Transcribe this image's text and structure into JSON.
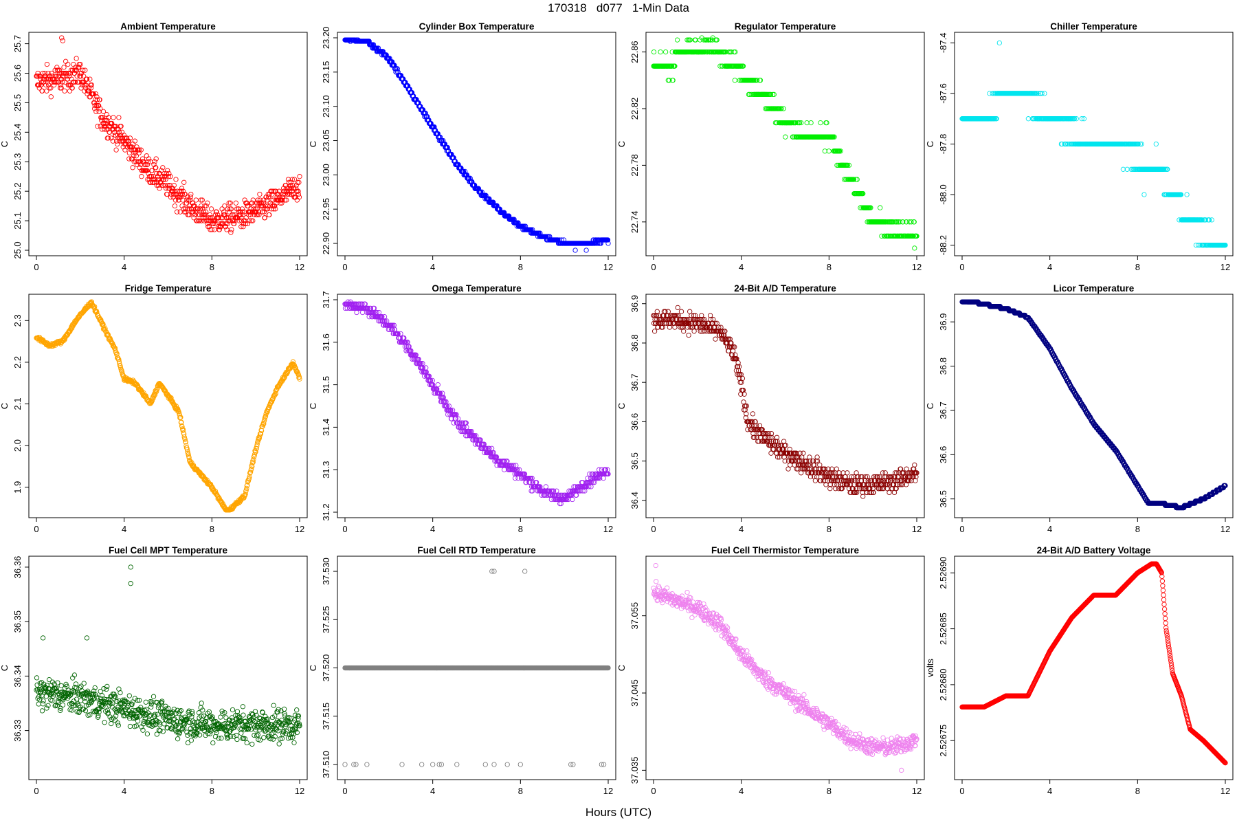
{
  "page": {
    "title": "170318   d077   1-Min Data",
    "x_axis_label": "Hours (UTC)"
  },
  "chart_data": [
    {
      "type": "scatter",
      "title": "Ambient Temperature",
      "ylabel": "C",
      "color": "#ff0000",
      "xlim": [
        0,
        12
      ],
      "xticks": [
        0,
        4,
        8,
        12
      ],
      "ylim": [
        25.0,
        25.72
      ],
      "yticks": [
        "25.0",
        "25.1",
        "25.2",
        "25.3",
        "25.4",
        "25.5",
        "25.6",
        "25.7"
      ],
      "trend": [
        [
          0,
          25.57
        ],
        [
          1,
          25.58
        ],
        [
          2,
          25.6
        ],
        [
          3,
          25.45
        ],
        [
          4,
          25.37
        ],
        [
          5,
          25.28
        ],
        [
          6,
          25.22
        ],
        [
          7,
          25.15
        ],
        [
          8,
          25.1
        ],
        [
          9,
          25.11
        ],
        [
          10,
          25.13
        ],
        [
          11,
          25.17
        ],
        [
          12,
          25.22
        ]
      ],
      "noise": 0.045,
      "discrete_step": 0.01,
      "outliers": [
        [
          1.15,
          25.72
        ],
        [
          1.2,
          25.71
        ]
      ]
    },
    {
      "type": "scatter",
      "title": "Cylinder Box Temperature",
      "ylabel": "C",
      "color": "#0000ff",
      "xlim": [
        0,
        12
      ],
      "xticks": [
        0,
        4,
        8,
        12
      ],
      "ylim": [
        22.89,
        23.2
      ],
      "yticks": [
        "22.90",
        "22.95",
        "23.00",
        "23.05",
        "23.10",
        "23.15",
        "23.20"
      ],
      "trend": [
        [
          0,
          23.2
        ],
        [
          1,
          23.195
        ],
        [
          2,
          23.17
        ],
        [
          3,
          23.12
        ],
        [
          4,
          23.07
        ],
        [
          5,
          23.02
        ],
        [
          6,
          22.98
        ],
        [
          7,
          22.95
        ],
        [
          8,
          22.925
        ],
        [
          9,
          22.91
        ],
        [
          10,
          22.9
        ],
        [
          11,
          22.9
        ],
        [
          12,
          22.905
        ]
      ],
      "noise": 0.002,
      "discrete_step": 0.005,
      "outliers": [
        [
          10.5,
          22.89
        ],
        [
          11.0,
          22.89
        ]
      ]
    },
    {
      "type": "scatter",
      "title": "Regulator Temperature",
      "ylabel": "C",
      "color": "#00ee00",
      "xlim": [
        0,
        12
      ],
      "xticks": [
        0,
        4,
        8,
        12
      ],
      "ylim": [
        22.72,
        22.87
      ],
      "yticks": [
        "22.74",
        "22.78",
        "22.82",
        "22.86"
      ],
      "trend": [
        [
          0,
          22.85
        ],
        [
          0.9,
          22.85
        ],
        [
          1.0,
          22.86
        ],
        [
          2.5,
          22.865
        ],
        [
          3.5,
          22.855
        ],
        [
          4,
          22.845
        ],
        [
          5,
          22.83
        ],
        [
          6,
          22.81
        ],
        [
          7,
          22.8
        ],
        [
          8,
          22.8
        ],
        [
          9,
          22.77
        ],
        [
          10,
          22.74
        ],
        [
          12,
          22.73
        ]
      ],
      "noise": 0.006,
      "discrete_step": 0.01,
      "outliers": [
        [
          2.2,
          22.87
        ],
        [
          2.7,
          22.87
        ]
      ]
    },
    {
      "type": "scatter",
      "title": "Chiller Temperature",
      "ylabel": "C",
      "color": "#00e5ee",
      "xlim": [
        0,
        12
      ],
      "xticks": [
        0,
        4,
        8,
        12
      ],
      "ylim": [
        -88.22,
        -87.38
      ],
      "yticks": [
        "-88.2",
        "-88.0",
        "-87.8",
        "-87.6",
        "-87.4"
      ],
      "trend": [
        [
          0,
          -87.7
        ],
        [
          1,
          -87.7
        ],
        [
          2,
          -87.6
        ],
        [
          3,
          -87.62
        ],
        [
          4,
          -87.7
        ],
        [
          5,
          -87.75
        ],
        [
          6,
          -87.8
        ],
        [
          7,
          -87.8
        ],
        [
          8,
          -87.85
        ],
        [
          9,
          -87.9
        ],
        [
          10,
          -88.05
        ],
        [
          11,
          -88.15
        ],
        [
          12,
          -88.2
        ]
      ],
      "noise": 0.04,
      "discrete_step": 0.1,
      "outliers": [
        [
          1.7,
          -87.4
        ],
        [
          8.3,
          -88.0
        ]
      ]
    },
    {
      "type": "scatter",
      "title": "Fridge Temperature",
      "ylabel": "C",
      "color": "#ffa500",
      "xlim": [
        0,
        12
      ],
      "xticks": [
        0,
        4,
        8,
        12
      ],
      "ylim": [
        1.84,
        2.35
      ],
      "yticks": [
        "1.9",
        "2.0",
        "2.1",
        "2.2",
        "2.3"
      ],
      "trend": [
        [
          0,
          2.26
        ],
        [
          0.6,
          2.24
        ],
        [
          1.2,
          2.25
        ],
        [
          1.8,
          2.3
        ],
        [
          2.5,
          2.345
        ],
        [
          3.2,
          2.27
        ],
        [
          3.6,
          2.23
        ],
        [
          4.0,
          2.16
        ],
        [
          4.5,
          2.15
        ],
        [
          5.2,
          2.1
        ],
        [
          5.6,
          2.15
        ],
        [
          6.0,
          2.12
        ],
        [
          6.5,
          2.08
        ],
        [
          7.0,
          1.96
        ],
        [
          7.5,
          1.93
        ],
        [
          8.0,
          1.9
        ],
        [
          8.7,
          1.84
        ],
        [
          9.5,
          1.88
        ],
        [
          10.0,
          1.99
        ],
        [
          10.5,
          2.08
        ],
        [
          11.0,
          2.14
        ],
        [
          11.7,
          2.2
        ],
        [
          12,
          2.16
        ]
      ],
      "noise": 0.004,
      "discrete_step": 0,
      "outliers": []
    },
    {
      "type": "scatter",
      "title": "Omega Temperature",
      "ylabel": "C",
      "color": "#a020f0",
      "xlim": [
        0,
        12
      ],
      "xticks": [
        0,
        4,
        8,
        12
      ],
      "ylim": [
        31.2,
        31.7
      ],
      "yticks": [
        "31.2",
        "31.3",
        "31.4",
        "31.5",
        "31.6",
        "31.7"
      ],
      "trend": [
        [
          0,
          31.69
        ],
        [
          1,
          31.68
        ],
        [
          2,
          31.64
        ],
        [
          3,
          31.58
        ],
        [
          4,
          31.5
        ],
        [
          5,
          31.42
        ],
        [
          6,
          31.37
        ],
        [
          7,
          31.32
        ],
        [
          8,
          31.29
        ],
        [
          9,
          31.25
        ],
        [
          10,
          31.23
        ],
        [
          11,
          31.27
        ],
        [
          12,
          31.3
        ]
      ],
      "noise": 0.012,
      "discrete_step": 0.01,
      "outliers": []
    },
    {
      "type": "scatter",
      "title": "24-Bit A/D Temperature",
      "ylabel": "C",
      "color": "#8b0000",
      "xlim": [
        0,
        12
      ],
      "xticks": [
        0,
        4,
        8,
        12
      ],
      "ylim": [
        36.37,
        36.91
      ],
      "yticks": [
        "36.4",
        "36.5",
        "36.6",
        "36.7",
        "36.8",
        "36.9"
      ],
      "trend": [
        [
          0,
          36.86
        ],
        [
          1,
          36.86
        ],
        [
          2,
          36.85
        ],
        [
          3,
          36.83
        ],
        [
          3.6,
          36.78
        ],
        [
          4.0,
          36.7
        ],
        [
          4.3,
          36.6
        ],
        [
          5,
          36.56
        ],
        [
          6,
          36.52
        ],
        [
          7,
          36.49
        ],
        [
          8,
          36.46
        ],
        [
          9,
          36.44
        ],
        [
          10,
          36.44
        ],
        [
          11,
          36.45
        ],
        [
          12,
          36.47
        ]
      ],
      "noise": 0.025,
      "discrete_step": 0.01,
      "outliers": []
    },
    {
      "type": "scatter",
      "title": "Licor Temperature",
      "ylabel": "C",
      "color": "#000080",
      "xlim": [
        0,
        12
      ],
      "xticks": [
        0,
        4,
        8,
        12
      ],
      "ylim": [
        36.47,
        36.95
      ],
      "yticks": [
        "36.5",
        "36.6",
        "36.7",
        "36.8",
        "36.9"
      ],
      "trend": [
        [
          0,
          36.95
        ],
        [
          1,
          36.94
        ],
        [
          2,
          36.93
        ],
        [
          3,
          36.91
        ],
        [
          4,
          36.84
        ],
        [
          5,
          36.75
        ],
        [
          6,
          36.67
        ],
        [
          7,
          36.61
        ],
        [
          8,
          36.53
        ],
        [
          8.5,
          36.49
        ],
        [
          9,
          36.49
        ],
        [
          10,
          36.48
        ],
        [
          11,
          36.5
        ],
        [
          12,
          36.53
        ]
      ],
      "noise": 0.0,
      "discrete_step": 0.005,
      "outliers": []
    },
    {
      "type": "scatter",
      "title": "Fuel Cell MPT Temperature",
      "ylabel": "C",
      "color": "#006400",
      "xlim": [
        0,
        12
      ],
      "xticks": [
        0,
        4,
        8,
        12
      ],
      "ylim": [
        36.322,
        36.361
      ],
      "yticks": [
        "36.33",
        "36.34",
        "36.35",
        "36.36"
      ],
      "trend": [
        [
          0,
          36.337
        ],
        [
          2,
          36.336
        ],
        [
          4,
          36.334
        ],
        [
          6,
          36.332
        ],
        [
          8,
          36.331
        ],
        [
          10,
          36.331
        ],
        [
          12,
          36.331
        ]
      ],
      "noise": 0.003,
      "discrete_step": 0,
      "outliers": [
        [
          4.3,
          36.36
        ],
        [
          4.3,
          36.357
        ],
        [
          2.3,
          36.347
        ],
        [
          0.3,
          36.347
        ]
      ]
    },
    {
      "type": "scatter",
      "title": "Fuel Cell RTD Temperature",
      "ylabel": "C",
      "color": "#808080",
      "xlim": [
        0,
        12
      ],
      "xticks": [
        0,
        4,
        8,
        12
      ],
      "ylim": [
        37.509,
        37.531
      ],
      "yticks": [
        "37.510",
        "37.515",
        "37.520",
        "37.525",
        "37.530"
      ],
      "trend": [
        [
          0,
          37.52
        ],
        [
          12,
          37.52
        ]
      ],
      "noise": 0,
      "discrete_step": 0,
      "outliers": [
        [
          6.7,
          37.53
        ],
        [
          6.8,
          37.53
        ],
        [
          8.2,
          37.53
        ],
        [
          0.0,
          37.51
        ],
        [
          0.4,
          37.51
        ],
        [
          0.5,
          37.51
        ],
        [
          1.0,
          37.51
        ],
        [
          2.6,
          37.51
        ],
        [
          3.5,
          37.51
        ],
        [
          4.0,
          37.51
        ],
        [
          4.3,
          37.51
        ],
        [
          4.4,
          37.51
        ],
        [
          5.1,
          37.51
        ],
        [
          6.4,
          37.51
        ],
        [
          6.8,
          37.51
        ],
        [
          7.4,
          37.51
        ],
        [
          8.0,
          37.51
        ],
        [
          10.3,
          37.51
        ],
        [
          10.4,
          37.51
        ],
        [
          11.7,
          37.51
        ],
        [
          11.8,
          37.51
        ]
      ]
    },
    {
      "type": "scatter",
      "title": "Fuel Cell Thermistor Temperature",
      "ylabel": "C",
      "color": "#ee82ee",
      "xlim": [
        0,
        12
      ],
      "xticks": [
        0,
        4,
        8,
        12
      ],
      "ylim": [
        37.0345,
        37.062
      ],
      "yticks": [
        "37.035",
        "37.045",
        "37.055"
      ],
      "trend": [
        [
          0,
          37.058
        ],
        [
          1,
          37.057
        ],
        [
          2,
          37.056
        ],
        [
          3,
          37.054
        ],
        [
          4,
          37.05
        ],
        [
          5,
          37.047
        ],
        [
          6,
          37.045
        ],
        [
          7,
          37.043
        ],
        [
          8,
          37.041
        ],
        [
          9,
          37.039
        ],
        [
          10,
          37.038
        ],
        [
          11,
          37.038
        ],
        [
          12,
          37.039
        ]
      ],
      "noise": 0.0011,
      "discrete_step": 0,
      "outliers": [
        [
          0.1,
          37.0615
        ],
        [
          11.3,
          37.035
        ]
      ]
    },
    {
      "type": "scatter",
      "title": "24-Bit A/D Battery Voltage",
      "ylabel": "volts",
      "color": "#ff0000",
      "xlim": [
        0,
        12
      ],
      "xticks": [
        0,
        4,
        8,
        12
      ],
      "ylim": [
        2.52672,
        2.52691
      ],
      "yticks": [
        "2.52675",
        "2.52680",
        "2.52685",
        "2.52690"
      ],
      "trend": [
        [
          0,
          2.52678
        ],
        [
          1,
          2.52678
        ],
        [
          2,
          2.52679
        ],
        [
          3,
          2.52679
        ],
        [
          4,
          2.52683
        ],
        [
          5,
          2.52686
        ],
        [
          6,
          2.52688
        ],
        [
          7,
          2.52688
        ],
        [
          8,
          2.5269
        ],
        [
          8.8,
          2.52691
        ],
        [
          9.1,
          2.5269
        ],
        [
          9.3,
          2.52685
        ],
        [
          9.6,
          2.52681
        ],
        [
          10,
          2.52679
        ],
        [
          10.4,
          2.52676
        ],
        [
          11,
          2.52675
        ],
        [
          12,
          2.52673
        ]
      ],
      "noise": 0.0,
      "discrete_step": 0,
      "outliers": []
    }
  ]
}
